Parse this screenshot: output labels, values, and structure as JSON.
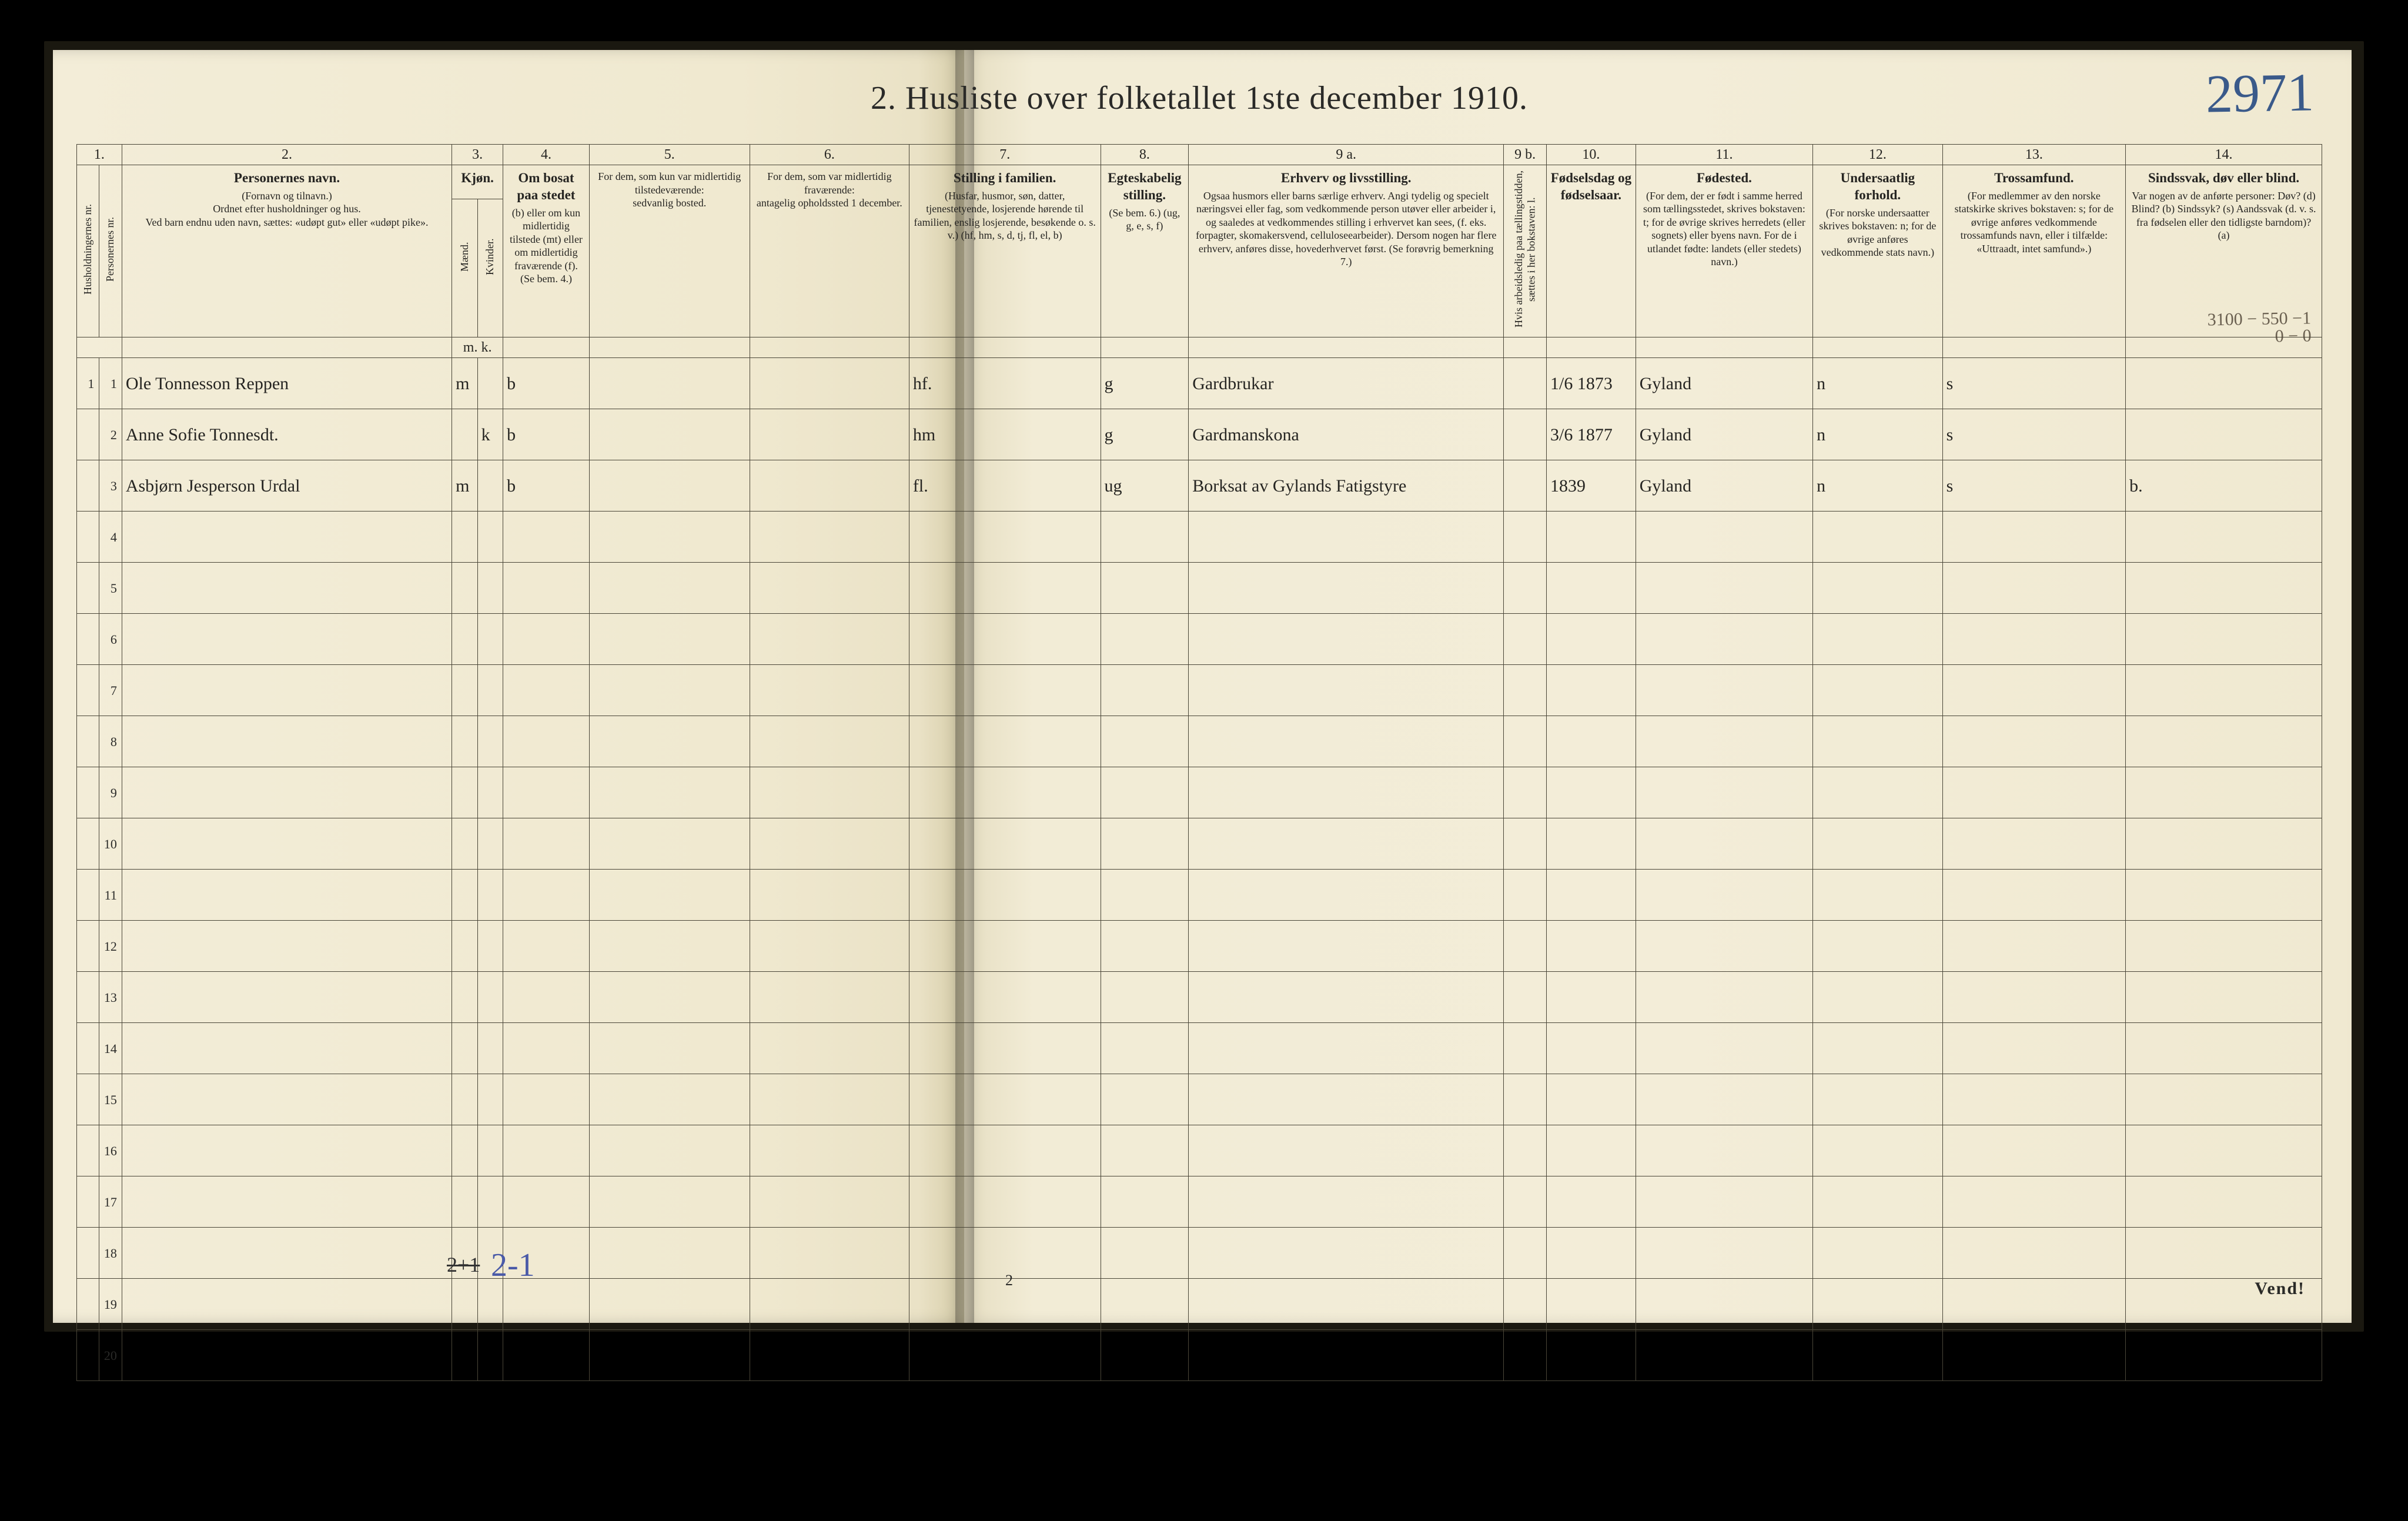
{
  "title": "2.  Husliste over folketallet 1ste december 1910.",
  "topright_annotation": "2971",
  "margin_note_line1": "3100 − 550 −1",
  "margin_note_line2": "0 − 0",
  "columns": {
    "num": [
      "1.",
      "2.",
      "3.",
      "4.",
      "5.",
      "6.",
      "7.",
      "8.",
      "9 a.",
      "9 b.",
      "10.",
      "11.",
      "12.",
      "13.",
      "14."
    ],
    "c1_vert": "Husholdningernes nr.",
    "c1b_vert": "Personernes nr.",
    "c2_title": "Personernes navn.",
    "c2_sub1": "(Fornavn og tilnavn.)",
    "c2_sub2": "Ordnet efter husholdninger og hus.",
    "c2_sub3": "Ved barn endnu uden navn, sættes: «udøpt gut» eller «udøpt pike».",
    "c3_title": "Kjøn.",
    "c3a_vert": "Mænd.",
    "c3b_vert": "Kvinder.",
    "c3_mk": "m.  k.",
    "c4_title": "Om bosat paa stedet",
    "c4_sub": "(b) eller om kun midlertidig tilstede (mt) eller om midlertidig fraværende (f). (Se bem. 4.)",
    "c5_title": "For dem, som kun var midlertidig tilstedeværende:",
    "c5_sub": "sedvanlig bosted.",
    "c6_title": "For dem, som var midlertidig fraværende:",
    "c6_sub": "antagelig opholdssted 1 december.",
    "c7_title": "Stilling i familien.",
    "c7_sub": "(Husfar, husmor, søn, datter, tjenestetyende, losjerende hørende til familien, enslig losjerende, besøkende o. s. v.) (hf, hm, s, d, tj, fl, el, b)",
    "c8_title": "Egteskabelig stilling.",
    "c8_sub": "(Se bem. 6.) (ug, g, e, s, f)",
    "c9a_title": "Erhverv og livsstilling.",
    "c9a_sub": "Ogsaa husmors eller barns særlige erhverv. Angi tydelig og specielt næringsvei eller fag, som vedkommende person utøver eller arbeider i, og saaledes at vedkommendes stilling i erhvervet kan sees, (f. eks. forpagter, skomakersvend, celluloseearbeider). Dersom nogen har flere erhverv, anføres disse, hovederhvervet først. (Se forøvrig bemerkning 7.)",
    "c9b_vert": "Hvis arbeidsledig paa tællingstidden, sættes i her bokstaven: l.",
    "c10_title": "Fødselsdag og fødselsaar.",
    "c11_title": "Fødested.",
    "c11_sub": "(For dem, der er født i samme herred som tællingsstedet, skrives bokstaven: t; for de øvrige skrives herredets (eller sognets) eller byens navn. For de i utlandet fødte: landets (eller stedets) navn.)",
    "c12_title": "Undersaatlig forhold.",
    "c12_sub": "(For norske undersaatter skrives bokstaven: n; for de øvrige anføres vedkommende stats navn.)",
    "c13_title": "Trossamfund.",
    "c13_sub": "(For medlemmer av den norske statskirke skrives bokstaven: s; for de øvrige anføres vedkommende trossamfunds navn, eller i tilfælde: «Uttraadt, intet samfund».)",
    "c14_title": "Sindssvak, døv eller blind.",
    "c14_sub": "Var nogen av de anførte personer: Døv? (d) Blind? (b) Sindssyk? (s) Aandssvak (d. v. s. fra fødselen eller den tidligste barndom)? (a)"
  },
  "rows": [
    {
      "hh": "1",
      "p": "1",
      "name": "Ole Tonnesson Reppen",
      "sex": "m",
      "bosat": "b",
      "c5": "",
      "c6": "",
      "fam": "hf.",
      "egte": "g",
      "erhverv": "Gardbrukar",
      "c9b": "",
      "fods": "1/6 1873",
      "fsted": "Gyland",
      "under": "n",
      "tros": "s",
      "sind": ""
    },
    {
      "hh": "",
      "p": "2",
      "name": "Anne Sofie Tonnesdt.",
      "sex": "k",
      "bosat": "b",
      "c5": "",
      "c6": "",
      "fam": "hm",
      "egte": "g",
      "erhverv": "Gardmanskona",
      "c9b": "",
      "fods": "3/6 1877",
      "fsted": "Gyland",
      "under": "n",
      "tros": "s",
      "sind": ""
    },
    {
      "hh": "",
      "p": "3",
      "name": "Asbjørn Jesperson Urdal",
      "sex": "m",
      "bosat": "b",
      "c5": "",
      "c6": "",
      "fam": "fl.",
      "egte": "ug",
      "erhverv": "Borksat av Gylands Fatigstyre",
      "c9b": "",
      "fods": "1839",
      "fsted": "Gyland",
      "under": "n",
      "tros": "s",
      "sind": "b."
    }
  ],
  "empty_row_nums": [
    "4",
    "5",
    "6",
    "7",
    "8",
    "9",
    "10",
    "11",
    "12",
    "13",
    "14",
    "15",
    "16",
    "17",
    "18",
    "19",
    "20"
  ],
  "bottom_strike": "2+1",
  "bottom_annotation": "2-1",
  "page_num_center": "2",
  "vend": "Vend!",
  "colors": {
    "bg": "#000000",
    "paper": "#f3edd8",
    "ink": "#262522",
    "rule": "#4a4638",
    "handwriting": "#2b2418",
    "blue_ink": "#4a5aa8"
  }
}
